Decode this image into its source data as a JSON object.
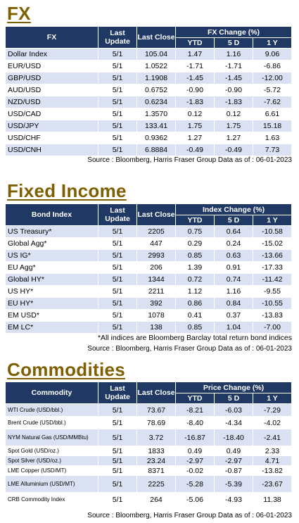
{
  "fx": {
    "title": "FX",
    "headers": {
      "col1": "FX",
      "last_update": "Last Update",
      "last_close": "Last Close",
      "change": "FX Change (%)",
      "ytd": "YTD",
      "d5": "5 D",
      "y1": "1 Y"
    },
    "rows": [
      {
        "name": "Dollar Index",
        "update": "5/1",
        "close": "105.04",
        "ytd": "1.47",
        "d5": "1.16",
        "y1": "9.06"
      },
      {
        "name": "EUR/USD",
        "update": "5/1",
        "close": "1.0522",
        "ytd": "-1.71",
        "d5": "-1.71",
        "y1": "-6.86"
      },
      {
        "name": "GBP/USD",
        "update": "5/1",
        "close": "1.1908",
        "ytd": "-1.45",
        "d5": "-1.45",
        "y1": "-12.00"
      },
      {
        "name": "AUD/USD",
        "update": "5/1",
        "close": "0.6752",
        "ytd": "-0.90",
        "d5": "-0.90",
        "y1": "-5.72"
      },
      {
        "name": "NZD/USD",
        "update": "5/1",
        "close": "0.6234",
        "ytd": "-1.83",
        "d5": "-1.83",
        "y1": "-7.62"
      },
      {
        "name": "USD/CAD",
        "update": "5/1",
        "close": "1.3570",
        "ytd": "0.12",
        "d5": "0.12",
        "y1": "6.61"
      },
      {
        "name": "USD/JPY",
        "update": "5/1",
        "close": "133.41",
        "ytd": "1.75",
        "d5": "1.75",
        "y1": "15.18"
      },
      {
        "name": "USD/CHF",
        "update": "5/1",
        "close": "0.9362",
        "ytd": "1.27",
        "d5": "1.27",
        "y1": "1.63"
      },
      {
        "name": "USD/CNH",
        "update": "5/1",
        "close": "6.8884",
        "ytd": "-0.49",
        "d5": "-0.49",
        "y1": "7.73"
      }
    ],
    "source": "Source : Bloomberg, Harris Fraser Group Data as of : 06-01-2023"
  },
  "fixed_income": {
    "title": "Fixed Income",
    "headers": {
      "col1": "Bond Index",
      "last_update": "Last Update",
      "last_close": "Last Close",
      "change": "Index Change (%)",
      "ytd": "YTD",
      "d5": "5 D",
      "y1": "1 Y"
    },
    "rows": [
      {
        "name": "US Treasury*",
        "update": "5/1",
        "close": "2205",
        "ytd": "0.75",
        "d5": "0.64",
        "y1": "-10.58"
      },
      {
        "name": "Global Agg*",
        "update": "5/1",
        "close": "447",
        "ytd": "0.29",
        "d5": "0.24",
        "y1": "-15.02"
      },
      {
        "name": "US IG*",
        "update": "5/1",
        "close": "2993",
        "ytd": "0.85",
        "d5": "0.63",
        "y1": "-13.66"
      },
      {
        "name": "EU Agg*",
        "update": "5/1",
        "close": "206",
        "ytd": "1.39",
        "d5": "0.91",
        "y1": "-17.33"
      },
      {
        "name": "Global HY*",
        "update": "5/1",
        "close": "1344",
        "ytd": "0.72",
        "d5": "0.74",
        "y1": "-11.42"
      },
      {
        "name": "US HY*",
        "update": "5/1",
        "close": "2211",
        "ytd": "1.12",
        "d5": "1.16",
        "y1": "-9.55"
      },
      {
        "name": "EU HY*",
        "update": "5/1",
        "close": "392",
        "ytd": "0.86",
        "d5": "0.84",
        "y1": "-10.55"
      },
      {
        "name": "EM USD*",
        "update": "5/1",
        "close": "1078",
        "ytd": "0.41",
        "d5": "0.37",
        "y1": "-13.83"
      },
      {
        "name": "EM LC*",
        "update": "5/1",
        "close": "138",
        "ytd": "0.85",
        "d5": "1.04",
        "y1": "-7.00"
      }
    ],
    "footnote": "*All indices are Bloomberg Barclay total return bond indices",
    "source": "Source : Bloomberg, Harris Fraser Group Data as of : 06-01-2023"
  },
  "commodities": {
    "title": "Commodities",
    "headers": {
      "col1": "Commodity",
      "last_update": "Last Update",
      "last_close": "Last Close",
      "change": "Price Change (%)",
      "ytd": "YTD",
      "d5": "5 D",
      "y1": "1 Y"
    },
    "rows": [
      {
        "name": "WTI Crude (USD/bbl.)",
        "update": "5/1",
        "close": "73.67",
        "ytd": "-8.21",
        "d5": "-6.03",
        "y1": "-7.29"
      },
      {
        "name": "Brent Crude (USD/bbl.)",
        "update": "5/1",
        "close": "78.69",
        "ytd": "-8.40",
        "d5": "-4.34",
        "y1": "-4.02"
      },
      {
        "name": "NYM Natural Gas (USD/MMBtu)",
        "update": "5/1",
        "close": "3.72",
        "ytd": "-16.87",
        "d5": "-18.40",
        "y1": "-2.41"
      },
      {
        "name": "Spot Gold (USD/oz.)",
        "update": "5/1",
        "close": "1833",
        "ytd": "0.49",
        "d5": "0.49",
        "y1": "2.33"
      },
      {
        "name": "Spot Silver (USD/oz.)",
        "update": "5/1",
        "close": "23.24",
        "ytd": "-2.97",
        "d5": "-2.97",
        "y1": "4.71"
      },
      {
        "name": "LME Copper (USD/MT)",
        "update": "5/1",
        "close": "8371",
        "ytd": "-0.02",
        "d5": "-0.87",
        "y1": "-13.82"
      },
      {
        "name": "LME Alluminium (USD/MT)",
        "update": "5/1",
        "close": "2225",
        "ytd": "-5.28",
        "d5": "-5.39",
        "y1": "-23.67"
      },
      {
        "name": "CRB Commodity Index",
        "update": "5/1",
        "close": "264",
        "ytd": "-5.06",
        "d5": "-4.93",
        "y1": "11.38"
      }
    ],
    "source": "Source : Bloomberg, Harris Fraser Group Data as of : 06-01-2023"
  }
}
